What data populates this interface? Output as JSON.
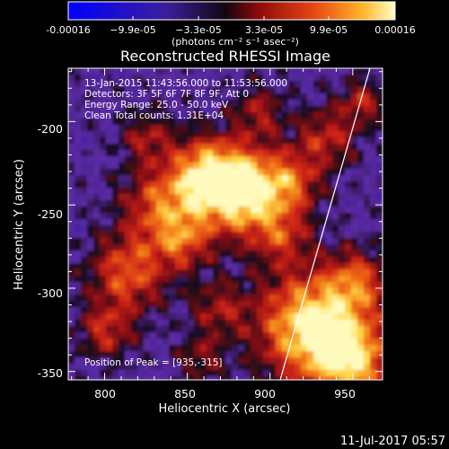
{
  "colorbar": {
    "tick_labels": [
      "-0.00016",
      "−9.9e-05",
      "−3.3e-05",
      "3.3e-05",
      "9.9e-05",
      "0.00016"
    ],
    "units": "(photons cm⁻² s⁻¹ asec⁻²)"
  },
  "title": "Reconstructed RHESSI Image",
  "info": {
    "time_range": "13-Jan-2015 11:43:56.000 to 11:53:56.000",
    "detectors": "Detectors: 3F 5F 6F 7F 8F 9F, Att 0",
    "energy": "Energy Range: 25.0 - 50.0 keV",
    "clean": "Clean     Total counts: 1.31E+04",
    "peak": "Position of Peak = [935,-315]"
  },
  "axes": {
    "xlabel": "Heliocentric X (arcsec)",
    "ylabel": "Heliocentric Y (arcsec)",
    "xlim": [
      778,
      968
    ],
    "ylim": [
      -355,
      -168
    ],
    "xticks": [
      "800",
      "850",
      "900",
      "950"
    ],
    "yticks": [
      "-200",
      "-250",
      "-300",
      "-350"
    ]
  },
  "footer_date": "11-Jul-2017 05:57",
  "palette": {
    "negative_low": "#1e1ee6",
    "violet": "#5a2aa0",
    "dark": "#140a1e",
    "red": "#c81e14",
    "orange": "#f06414",
    "yellow": "#ffe650",
    "limb_line": "#ffffff"
  }
}
